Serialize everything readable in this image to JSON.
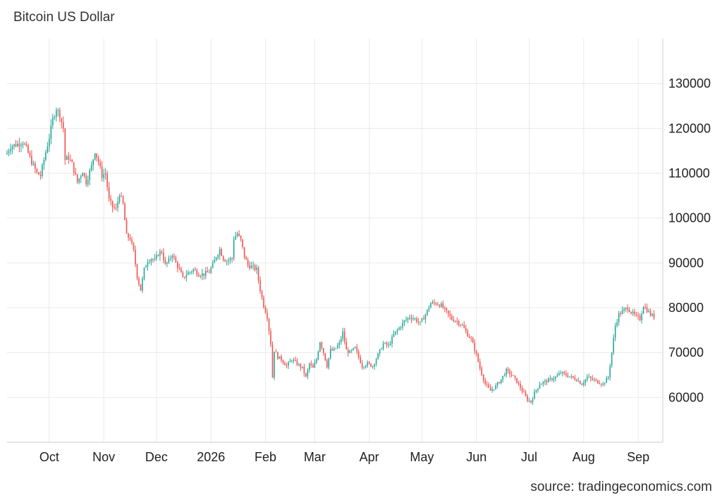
{
  "title": "Bitcoin US Dollar",
  "source": "source: tradingeconomics.com",
  "colors": {
    "up": "#26a69a",
    "down": "#ef5350",
    "grid": "#e9e9e9",
    "axis": "#cccccc"
  },
  "chart_data": {
    "type": "candlestick",
    "title": "Bitcoin US Dollar",
    "xlabel": "",
    "ylabel": "",
    "ylim": [
      50000,
      140000
    ],
    "y_ticks": [
      60000,
      70000,
      80000,
      90000,
      100000,
      110000,
      120000,
      130000
    ],
    "y_tick_labels": [
      "60000",
      "70000",
      "80000",
      "90000",
      "100000",
      "110000",
      "120000",
      "130000"
    ],
    "x_range": [
      "2025-09-07",
      "2026-09-15"
    ],
    "x_ticks": [
      {
        "date": "2025-10-01",
        "label": "Oct"
      },
      {
        "date": "2025-11-01",
        "label": "Nov"
      },
      {
        "date": "2025-12-01",
        "label": "Dec"
      },
      {
        "date": "2026-01-01",
        "label": "2026"
      },
      {
        "date": "2026-02-01",
        "label": "Feb"
      },
      {
        "date": "2026-03-01",
        "label": "Mar"
      },
      {
        "date": "2026-04-01",
        "label": "Apr"
      },
      {
        "date": "2026-05-01",
        "label": "May"
      },
      {
        "date": "2026-06-01",
        "label": "Jun"
      },
      {
        "date": "2026-07-01",
        "label": "Jul"
      },
      {
        "date": "2026-08-01",
        "label": "Aug"
      },
      {
        "date": "2026-09-01",
        "label": "Sep"
      }
    ],
    "grid": true,
    "close_series": [
      [
        "2025-09-07",
        114500
      ],
      [
        "2025-09-09",
        116000
      ],
      [
        "2025-09-13",
        116500
      ],
      [
        "2025-09-16",
        117000
      ],
      [
        "2025-09-18",
        115500
      ],
      [
        "2025-09-21",
        112500
      ],
      [
        "2025-09-24",
        110000
      ],
      [
        "2025-09-26",
        109500
      ],
      [
        "2025-09-28",
        113000
      ],
      [
        "2025-10-01",
        118000
      ],
      [
        "2025-10-03",
        122000
      ],
      [
        "2025-10-05",
        124500
      ],
      [
        "2025-10-07",
        123000
      ],
      [
        "2025-10-09",
        120000
      ],
      [
        "2025-10-10",
        113000
      ],
      [
        "2025-10-12",
        113500
      ],
      [
        "2025-10-14",
        112000
      ],
      [
        "2025-10-17",
        108000
      ],
      [
        "2025-10-20",
        110500
      ],
      [
        "2025-10-22",
        108000
      ],
      [
        "2025-10-25",
        111500
      ],
      [
        "2025-10-27",
        115000
      ],
      [
        "2025-10-29",
        112500
      ],
      [
        "2025-10-31",
        109500
      ],
      [
        "2025-11-02",
        110000
      ],
      [
        "2025-11-04",
        104000
      ],
      [
        "2025-11-06",
        102500
      ],
      [
        "2025-11-08",
        102000
      ],
      [
        "2025-11-10",
        105500
      ],
      [
        "2025-11-12",
        103000
      ],
      [
        "2025-11-14",
        96000
      ],
      [
        "2025-11-16",
        95500
      ],
      [
        "2025-11-18",
        92500
      ],
      [
        "2025-11-20",
        87000
      ],
      [
        "2025-11-22",
        84000
      ],
      [
        "2025-11-24",
        88500
      ],
      [
        "2025-11-26",
        90500
      ],
      [
        "2025-11-28",
        91000
      ],
      [
        "2025-11-30",
        90500
      ],
      [
        "2025-12-02",
        92000
      ],
      [
        "2025-12-04",
        92500
      ],
      [
        "2025-12-06",
        89500
      ],
      [
        "2025-12-08",
        90500
      ],
      [
        "2025-12-10",
        92000
      ],
      [
        "2025-12-12",
        90000
      ],
      [
        "2025-12-14",
        88500
      ],
      [
        "2025-12-16",
        86500
      ],
      [
        "2025-12-18",
        87500
      ],
      [
        "2025-12-20",
        88000
      ],
      [
        "2025-12-22",
        88500
      ],
      [
        "2025-12-25",
        87500
      ],
      [
        "2025-12-28",
        87500
      ],
      [
        "2025-12-31",
        88000
      ],
      [
        "2026-01-02",
        89500
      ],
      [
        "2026-01-04",
        91500
      ],
      [
        "2026-01-06",
        93000
      ],
      [
        "2026-01-08",
        91000
      ],
      [
        "2026-01-10",
        90500
      ],
      [
        "2026-01-13",
        91000
      ],
      [
        "2026-01-14",
        95500
      ],
      [
        "2026-01-16",
        96500
      ],
      [
        "2026-01-18",
        95000
      ],
      [
        "2026-01-20",
        91500
      ],
      [
        "2026-01-22",
        89500
      ],
      [
        "2026-01-25",
        89000
      ],
      [
        "2026-01-27",
        88500
      ],
      [
        "2026-01-29",
        84000
      ],
      [
        "2026-01-31",
        80500
      ],
      [
        "2026-02-02",
        78000
      ],
      [
        "2026-02-04",
        72000
      ],
      [
        "2026-02-05",
        64500
      ],
      [
        "2026-02-06",
        70500
      ],
      [
        "2026-02-08",
        69000
      ],
      [
        "2026-02-10",
        68500
      ],
      [
        "2026-02-13",
        67000
      ],
      [
        "2026-02-16",
        68500
      ],
      [
        "2026-02-19",
        67500
      ],
      [
        "2026-02-22",
        66500
      ],
      [
        "2026-02-24",
        64500
      ],
      [
        "2026-02-26",
        67500
      ],
      [
        "2026-02-28",
        66500
      ],
      [
        "2026-03-02",
        68500
      ],
      [
        "2026-03-04",
        72500
      ],
      [
        "2026-03-06",
        70000
      ],
      [
        "2026-03-08",
        67000
      ],
      [
        "2026-03-10",
        70500
      ],
      [
        "2026-03-12",
        70500
      ],
      [
        "2026-03-15",
        72000
      ],
      [
        "2026-03-17",
        74500
      ],
      [
        "2026-03-19",
        70500
      ],
      [
        "2026-03-21",
        70000
      ],
      [
        "2026-03-24",
        71000
      ],
      [
        "2026-03-26",
        69000
      ],
      [
        "2026-03-28",
        67000
      ],
      [
        "2026-03-31",
        67500
      ],
      [
        "2026-04-03",
        67000
      ],
      [
        "2026-04-06",
        69500
      ],
      [
        "2026-04-09",
        72000
      ],
      [
        "2026-04-12",
        71500
      ],
      [
        "2026-04-15",
        74000
      ],
      [
        "2026-04-18",
        75500
      ],
      [
        "2026-04-21",
        77000
      ],
      [
        "2026-04-24",
        78000
      ],
      [
        "2026-04-27",
        77500
      ],
      [
        "2026-04-30",
        76500
      ],
      [
        "2026-05-03",
        78500
      ],
      [
        "2026-05-06",
        81000
      ],
      [
        "2026-05-09",
        81000
      ],
      [
        "2026-05-12",
        80500
      ],
      [
        "2026-05-15",
        79000
      ],
      [
        "2026-05-18",
        77500
      ],
      [
        "2026-05-21",
        77000
      ],
      [
        "2026-05-24",
        76000
      ],
      [
        "2026-05-27",
        74000
      ],
      [
        "2026-05-29",
        73000
      ],
      [
        "2026-06-01",
        69500
      ],
      [
        "2026-06-03",
        66500
      ],
      [
        "2026-06-06",
        63000
      ],
      [
        "2026-06-09",
        61500
      ],
      [
        "2026-06-12",
        62500
      ],
      [
        "2026-06-15",
        64000
      ],
      [
        "2026-06-18",
        66000
      ],
      [
        "2026-06-21",
        65000
      ],
      [
        "2026-06-24",
        63500
      ],
      [
        "2026-06-27",
        61500
      ],
      [
        "2026-06-30",
        59500
      ],
      [
        "2026-07-02",
        59000
      ],
      [
        "2026-07-04",
        61000
      ],
      [
        "2026-07-07",
        63000
      ],
      [
        "2026-07-10",
        63500
      ],
      [
        "2026-07-13",
        64000
      ],
      [
        "2026-07-16",
        64500
      ],
      [
        "2026-07-19",
        65500
      ],
      [
        "2026-07-22",
        65000
      ],
      [
        "2026-07-25",
        64500
      ],
      [
        "2026-07-28",
        64000
      ],
      [
        "2026-07-31",
        63000
      ],
      [
        "2026-08-03",
        64500
      ],
      [
        "2026-08-06",
        64000
      ],
      [
        "2026-08-09",
        63500
      ],
      [
        "2026-08-12",
        63000
      ],
      [
        "2026-08-15",
        64500
      ],
      [
        "2026-08-17",
        70000
      ],
      [
        "2026-08-19",
        76000
      ],
      [
        "2026-08-21",
        78500
      ],
      [
        "2026-08-24",
        79500
      ],
      [
        "2026-08-26",
        80000
      ],
      [
        "2026-08-28",
        79000
      ],
      [
        "2026-08-31",
        78000
      ],
      [
        "2026-09-02",
        77500
      ],
      [
        "2026-09-04",
        80500
      ],
      [
        "2026-09-06",
        79500
      ],
      [
        "2026-09-08",
        78500
      ],
      [
        "2026-09-10",
        78000
      ]
    ]
  }
}
